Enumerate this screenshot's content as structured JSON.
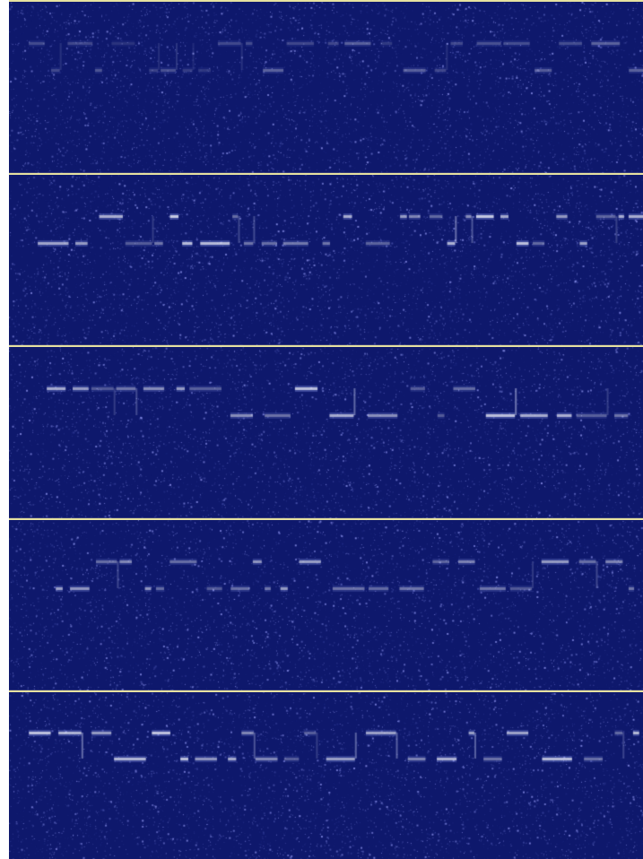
{
  "view": {
    "background_color": "#0e186c",
    "noise_color": "#4a5adf",
    "signal_color": "#f4f6ff",
    "divider_color": "#e6e1a0"
  },
  "panels": [
    {
      "id": 1,
      "signal_strength": 0.35
    },
    {
      "id": 2,
      "signal_strength": 0.85
    },
    {
      "id": 3,
      "signal_strength": 0.8
    },
    {
      "id": 4,
      "signal_strength": 0.7
    },
    {
      "id": 5,
      "signal_strength": 0.8
    }
  ]
}
